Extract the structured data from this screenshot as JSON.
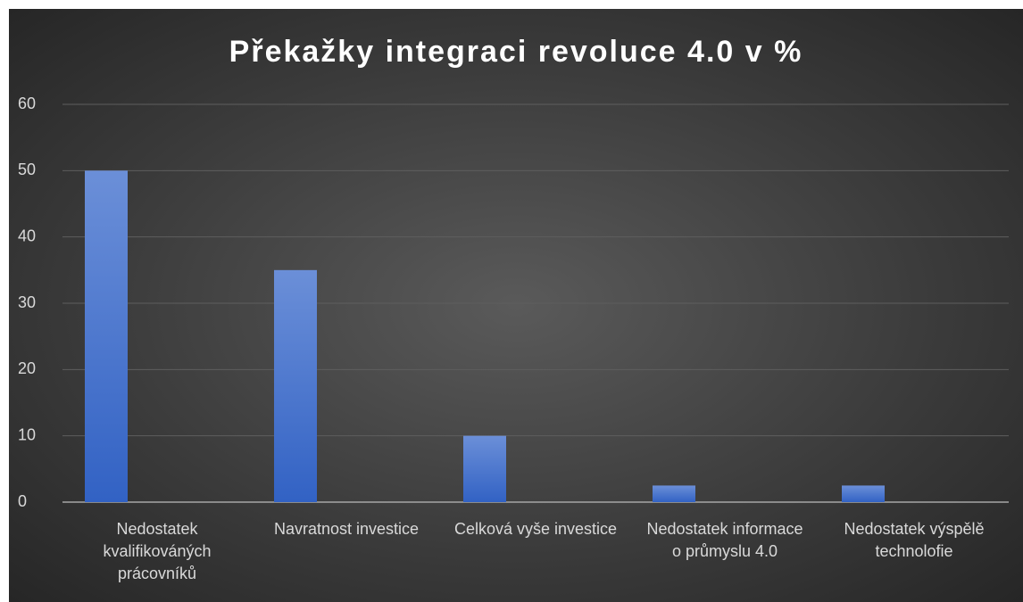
{
  "chart_data": {
    "type": "bar",
    "title": "Překažky integraci revoluce 4.0 v %",
    "categories": [
      "Nedostatek kvalifikováných prácovníků",
      "Navratnost investice",
      "Celková vyše investice",
      "Nedostatek informace o průmyslu 4.0",
      "Nedostatek výspělě technolofie"
    ],
    "values": [
      50,
      35,
      10,
      2.5,
      2.5
    ],
    "color": "#4472c4",
    "ylim": [
      0,
      60
    ],
    "yticks": [
      0,
      10,
      20,
      30,
      40,
      50,
      60
    ],
    "grid": true
  }
}
